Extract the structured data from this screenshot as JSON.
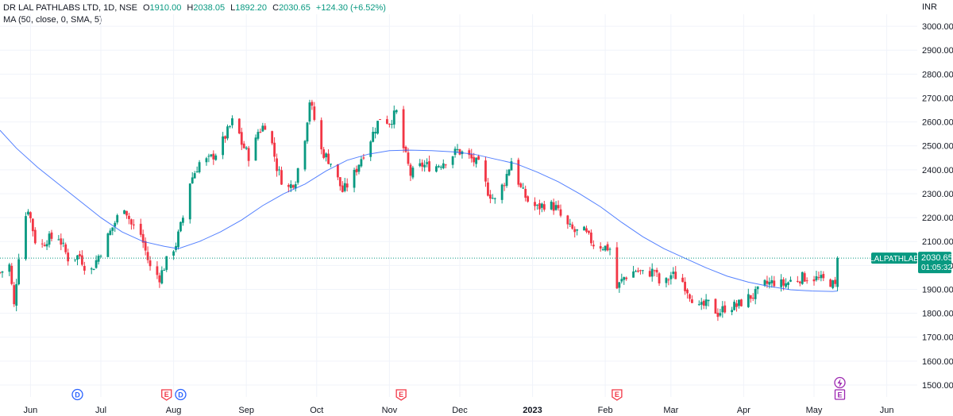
{
  "legend": {
    "symbol": "DR LAL PATHLABS LTD, 1D, NSE",
    "open_label": "O",
    "open": "1910.00",
    "high_label": "H",
    "high": "2038.05",
    "low_label": "L",
    "low": "1892.20",
    "close_label": "C",
    "close": "2030.65",
    "change": "+124.30 (+6.52%)",
    "indicator": "MA (50, close, 0, SMA, 5)"
  },
  "currency": "INR",
  "colors": {
    "up": "#089981",
    "down": "#f23645",
    "ma": "#2962ff",
    "grid": "#f0f3fa",
    "price_line": "#089981",
    "dividend": "#2962ff",
    "earnings": "#f23645",
    "upcoming": "#9c27b0"
  },
  "chart_data": {
    "type": "candlestick",
    "title": "DR LAL PATHLABS LTD, 1D, NSE",
    "ylim": [
      1450,
      3050
    ],
    "y_ticks": [
      "3000.00",
      "2900.00",
      "2800.00",
      "2700.00",
      "2600.00",
      "2500.00",
      "2400.00",
      "2300.00",
      "2200.00",
      "2100.00",
      "2000.00",
      "1900.00",
      "1800.00",
      "1700.00",
      "1600.00",
      "1500.00"
    ],
    "x_ticks": [
      "Jun",
      "Jul",
      "Aug",
      "Sep",
      "Oct",
      "Nov",
      "Dec",
      "2023",
      "Feb",
      "Mar",
      "Apr",
      "May",
      "Jun"
    ],
    "x_tick_dates": [
      "2022-06-01",
      "2022-07-01",
      "2022-08-01",
      "2022-09-01",
      "2022-10-01",
      "2022-11-01",
      "2022-12-01",
      "2023-01-01",
      "2023-02-01",
      "2023-03-01",
      "2023-04-01",
      "2023-05-01",
      "2023-06-01"
    ],
    "x_start": "2022-05-19",
    "x_end": "2023-06-14",
    "last_price": {
      "symbol": "LALPATHLAB",
      "value": 2030.65,
      "label": "2030.65",
      "countdown": "01:05:32"
    },
    "events": [
      {
        "type": "dividend",
        "date": "2022-06-21",
        "label": "D"
      },
      {
        "type": "earnings",
        "date": "2022-07-29",
        "label": "E"
      },
      {
        "type": "dividend",
        "date": "2022-08-04",
        "label": "D"
      },
      {
        "type": "earnings",
        "date": "2022-11-06",
        "label": "E"
      },
      {
        "type": "earnings",
        "date": "2023-02-06",
        "label": "E"
      },
      {
        "type": "upcoming-earnings",
        "date": "2023-05-12",
        "label": "E"
      }
    ],
    "series": [
      {
        "name": "DR LAL PATHLABS LTD",
        "kind": "ohlc",
        "last": {
          "open": 1910.0,
          "high": 2038.05,
          "low": 1892.2,
          "close": 2030.65
        },
        "path": [
          [
            "2022-05-19",
            1970
          ],
          [
            "2022-05-23",
            2000
          ],
          [
            "2022-05-25",
            1830
          ],
          [
            "2022-05-28",
            2150
          ],
          [
            "2022-05-31",
            2240
          ],
          [
            "2022-06-04",
            2060
          ],
          [
            "2022-06-08",
            2110
          ],
          [
            "2022-06-13",
            2120
          ],
          [
            "2022-06-17",
            2030
          ],
          [
            "2022-06-22",
            2040
          ],
          [
            "2022-06-26",
            1960
          ],
          [
            "2022-06-30",
            2040
          ],
          [
            "2022-07-04",
            2120
          ],
          [
            "2022-07-08",
            2200
          ],
          [
            "2022-07-11",
            2250
          ],
          [
            "2022-07-14",
            2170
          ],
          [
            "2022-07-18",
            2130
          ],
          [
            "2022-07-22",
            1990
          ],
          [
            "2022-07-26",
            1950
          ],
          [
            "2022-07-30",
            2040
          ],
          [
            "2022-08-02",
            2090
          ],
          [
            "2022-08-05",
            2200
          ],
          [
            "2022-08-08",
            2350
          ],
          [
            "2022-08-12",
            2430
          ],
          [
            "2022-08-16",
            2440
          ],
          [
            "2022-08-20",
            2480
          ],
          [
            "2022-08-24",
            2560
          ],
          [
            "2022-08-27",
            2620
          ],
          [
            "2022-08-30",
            2510
          ],
          [
            "2022-09-03",
            2440
          ],
          [
            "2022-09-06",
            2560
          ],
          [
            "2022-09-10",
            2600
          ],
          [
            "2022-09-14",
            2410
          ],
          [
            "2022-09-18",
            2310
          ],
          [
            "2022-09-22",
            2360
          ],
          [
            "2022-09-26",
            2540
          ],
          [
            "2022-09-28",
            2690
          ],
          [
            "2022-09-30",
            2610
          ],
          [
            "2022-10-03",
            2480
          ],
          [
            "2022-10-07",
            2430
          ],
          [
            "2022-10-12",
            2310
          ],
          [
            "2022-10-16",
            2360
          ],
          [
            "2022-10-20",
            2450
          ],
          [
            "2022-10-24",
            2530
          ],
          [
            "2022-10-28",
            2620
          ],
          [
            "2022-11-01",
            2600
          ],
          [
            "2022-11-04",
            2640
          ],
          [
            "2022-11-07",
            2490
          ],
          [
            "2022-11-10",
            2380
          ],
          [
            "2022-11-15",
            2420
          ],
          [
            "2022-11-20",
            2410
          ],
          [
            "2022-11-25",
            2440
          ],
          [
            "2022-11-30",
            2480
          ],
          [
            "2022-12-04",
            2460
          ],
          [
            "2022-12-09",
            2420
          ],
          [
            "2022-12-13",
            2310
          ],
          [
            "2022-12-16",
            2270
          ],
          [
            "2022-12-20",
            2350
          ],
          [
            "2022-12-23",
            2440
          ],
          [
            "2022-12-27",
            2320
          ],
          [
            "2022-12-30",
            2270
          ],
          [
            "2023-01-03",
            2240
          ],
          [
            "2023-01-07",
            2260
          ],
          [
            "2023-01-11",
            2240
          ],
          [
            "2023-01-15",
            2170
          ],
          [
            "2023-01-19",
            2140
          ],
          [
            "2023-01-23",
            2140
          ],
          [
            "2023-01-27",
            2090
          ],
          [
            "2023-01-31",
            2080
          ],
          [
            "2023-02-03",
            2070
          ],
          [
            "2023-02-05",
            1890
          ],
          [
            "2023-02-09",
            1950
          ],
          [
            "2023-02-14",
            1980
          ],
          [
            "2023-02-18",
            1960
          ],
          [
            "2023-02-22",
            1980
          ],
          [
            "2023-02-25",
            1900
          ],
          [
            "2023-03-01",
            1960
          ],
          [
            "2023-03-05",
            1950
          ],
          [
            "2023-03-09",
            1880
          ],
          [
            "2023-03-13",
            1820
          ],
          [
            "2023-03-17",
            1840
          ],
          [
            "2023-03-21",
            1800
          ],
          [
            "2023-03-25",
            1830
          ],
          [
            "2023-03-29",
            1830
          ],
          [
            "2023-04-02",
            1860
          ],
          [
            "2023-04-06",
            1880
          ],
          [
            "2023-04-10",
            1920
          ],
          [
            "2023-04-14",
            1930
          ],
          [
            "2023-04-18",
            1920
          ],
          [
            "2023-04-22",
            1940
          ],
          [
            "2023-04-26",
            1950
          ],
          [
            "2023-04-30",
            1950
          ],
          [
            "2023-05-04",
            1940
          ],
          [
            "2023-05-08",
            1930
          ],
          [
            "2023-05-10",
            1910
          ],
          [
            "2023-05-11",
            2031
          ]
        ]
      },
      {
        "name": "MA (50, close, 0, SMA, 5)",
        "kind": "line",
        "points": [
          [
            "2022-05-19",
            2565
          ],
          [
            "2022-05-26",
            2490
          ],
          [
            "2022-06-04",
            2410
          ],
          [
            "2022-06-13",
            2340
          ],
          [
            "2022-06-22",
            2270
          ],
          [
            "2022-07-01",
            2200
          ],
          [
            "2022-07-10",
            2140
          ],
          [
            "2022-07-19",
            2100
          ],
          [
            "2022-07-28",
            2080
          ],
          [
            "2022-08-03",
            2070
          ],
          [
            "2022-08-12",
            2100
          ],
          [
            "2022-08-21",
            2140
          ],
          [
            "2022-08-30",
            2190
          ],
          [
            "2022-09-08",
            2250
          ],
          [
            "2022-09-17",
            2300
          ],
          [
            "2022-09-26",
            2340
          ],
          [
            "2022-10-05",
            2395
          ],
          [
            "2022-10-14",
            2440
          ],
          [
            "2022-10-23",
            2465
          ],
          [
            "2022-11-01",
            2480
          ],
          [
            "2022-11-10",
            2482
          ],
          [
            "2022-11-19",
            2480
          ],
          [
            "2022-11-28",
            2475
          ],
          [
            "2022-12-07",
            2465
          ],
          [
            "2022-12-16",
            2445
          ],
          [
            "2022-12-25",
            2425
          ],
          [
            "2023-01-03",
            2390
          ],
          [
            "2023-01-12",
            2350
          ],
          [
            "2023-01-21",
            2300
          ],
          [
            "2023-01-30",
            2245
          ],
          [
            "2023-02-08",
            2180
          ],
          [
            "2023-02-17",
            2120
          ],
          [
            "2023-02-26",
            2070
          ],
          [
            "2023-03-07",
            2030
          ],
          [
            "2023-03-16",
            1990
          ],
          [
            "2023-03-25",
            1955
          ],
          [
            "2023-04-03",
            1930
          ],
          [
            "2023-04-12",
            1912
          ],
          [
            "2023-04-21",
            1898
          ],
          [
            "2023-04-30",
            1893
          ],
          [
            "2023-05-09",
            1891
          ],
          [
            "2023-05-11",
            1893
          ]
        ]
      }
    ]
  }
}
